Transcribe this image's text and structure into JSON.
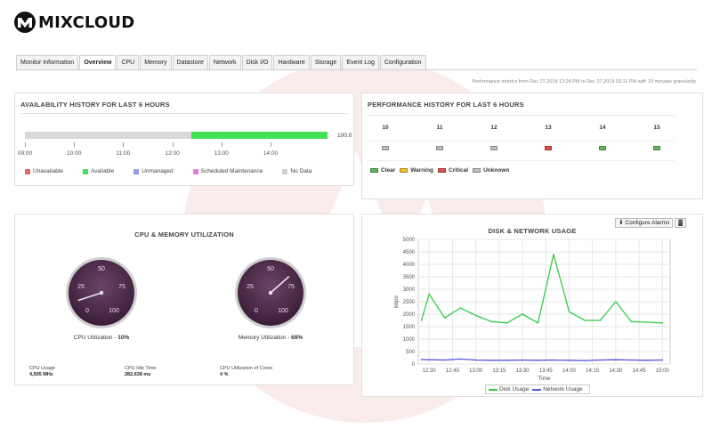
{
  "brand": {
    "name": "MIXCLOUD",
    "logo_icon": "mixcloud-logo-icon"
  },
  "tabs": [
    {
      "label": "Monitor Information",
      "active": false
    },
    {
      "label": "Overview",
      "active": true
    },
    {
      "label": "CPU",
      "active": false
    },
    {
      "label": "Memory",
      "active": false
    },
    {
      "label": "Datastore",
      "active": false
    },
    {
      "label": "Network",
      "active": false
    },
    {
      "label": "Disk I/O",
      "active": false
    },
    {
      "label": "Hardware",
      "active": false
    },
    {
      "label": "Storage",
      "active": false
    },
    {
      "label": "Event Log",
      "active": false
    },
    {
      "label": "Configuration",
      "active": false
    }
  ],
  "perf_note": "Performance metrics from Dec 27,2019 12:24 PM to Dec 27,2019 03:11 PM with 10 minutes granularity",
  "availability": {
    "title": "AVAILABILITY HISTORY FOR LAST 6 HOURS",
    "value": "100.0",
    "available_fraction": 0.45,
    "ticks": [
      "09:00",
      "10:00",
      "11:00",
      "12:00",
      "13:00",
      "14:00"
    ],
    "legend": [
      {
        "label": "Unavailable",
        "color": "#e06666"
      },
      {
        "label": "Available",
        "color": "#44e05a"
      },
      {
        "label": "Unmanaged",
        "color": "#9999e0"
      },
      {
        "label": "Scheduled Maintenance",
        "color": "#e27ae2"
      },
      {
        "label": "No Data",
        "color": "#d0d0d0"
      }
    ]
  },
  "performance": {
    "title": "PERFORMANCE HISTORY FOR LAST 6 HOURS",
    "hours": [
      {
        "label": "10",
        "status": "unknown"
      },
      {
        "label": "11",
        "status": "unknown"
      },
      {
        "label": "12",
        "status": "unknown"
      },
      {
        "label": "13",
        "status": "critical"
      },
      {
        "label": "14",
        "status": "clear"
      },
      {
        "label": "15",
        "status": "clear"
      }
    ],
    "status_colors": {
      "clear": "#5cb85c",
      "warning": "#f0c030",
      "critical": "#d9534f",
      "unknown": "#bdbdbd"
    },
    "legend": [
      {
        "label": "Clear",
        "color": "#5cb85c"
      },
      {
        "label": "Warning",
        "color": "#f0c030"
      },
      {
        "label": "Critical",
        "color": "#d9534f"
      },
      {
        "label": "Unknown",
        "color": "#bdbdbd"
      }
    ]
  },
  "cpu_memory": {
    "title": "CPU & MEMORY UTILIZATION",
    "gauges": [
      {
        "caption": "CPU Utilization - ",
        "value_text": "10%",
        "value": 10,
        "ticks": [
          "0",
          "25",
          "50",
          "75",
          "100"
        ]
      },
      {
        "caption": "Memory Utilization - ",
        "value_text": "68%",
        "value": 68,
        "ticks": [
          "0",
          "25",
          "50",
          "75",
          "100"
        ]
      }
    ],
    "stats": [
      {
        "label": "CPU Usage",
        "value": "4,505 MHz"
      },
      {
        "label": "CPU Idle Time",
        "value": "282,638 ms"
      },
      {
        "label": "CPU Utilization of Cores",
        "value": "4 %"
      }
    ]
  },
  "disk_network": {
    "title": "DISK & NETWORK USAGE",
    "configure_label": "Configure Alarms",
    "configure_icon": "alarm-icon",
    "chart_icon": "bar-chart-icon",
    "chart_data": {
      "type": "line",
      "title": "DISK & NETWORK USAGE",
      "xlabel": "Time",
      "ylabel": "kbps",
      "ylim": [
        0,
        5000
      ],
      "yticks": [
        0,
        500,
        1000,
        1500,
        2000,
        2500,
        3000,
        3500,
        4000,
        4500,
        5000
      ],
      "x": [
        "12:25",
        "12:30",
        "12:40",
        "12:50",
        "13:00",
        "13:10",
        "13:20",
        "13:30",
        "13:40",
        "13:50",
        "14:00",
        "14:10",
        "14:20",
        "14:30",
        "14:40",
        "14:50",
        "15:00"
      ],
      "xticks": [
        "12:30",
        "12:45",
        "13:00",
        "13:15",
        "13:30",
        "13:45",
        "14:00",
        "14:15",
        "14:30",
        "14:45",
        "15:00"
      ],
      "series": [
        {
          "name": "Disk Usage",
          "color": "#33cc44",
          "values": [
            1750,
            2800,
            1850,
            2250,
            1950,
            1700,
            1650,
            2000,
            1650,
            4400,
            2100,
            1750,
            1750,
            2500,
            1700,
            1680,
            1650
          ]
        },
        {
          "name": "Network Usage",
          "color": "#5555dd",
          "values": [
            180,
            170,
            160,
            200,
            160,
            150,
            150,
            160,
            150,
            160,
            150,
            140,
            160,
            170,
            160,
            150,
            160
          ]
        }
      ],
      "grid": true,
      "legend": "bottom-center"
    }
  }
}
